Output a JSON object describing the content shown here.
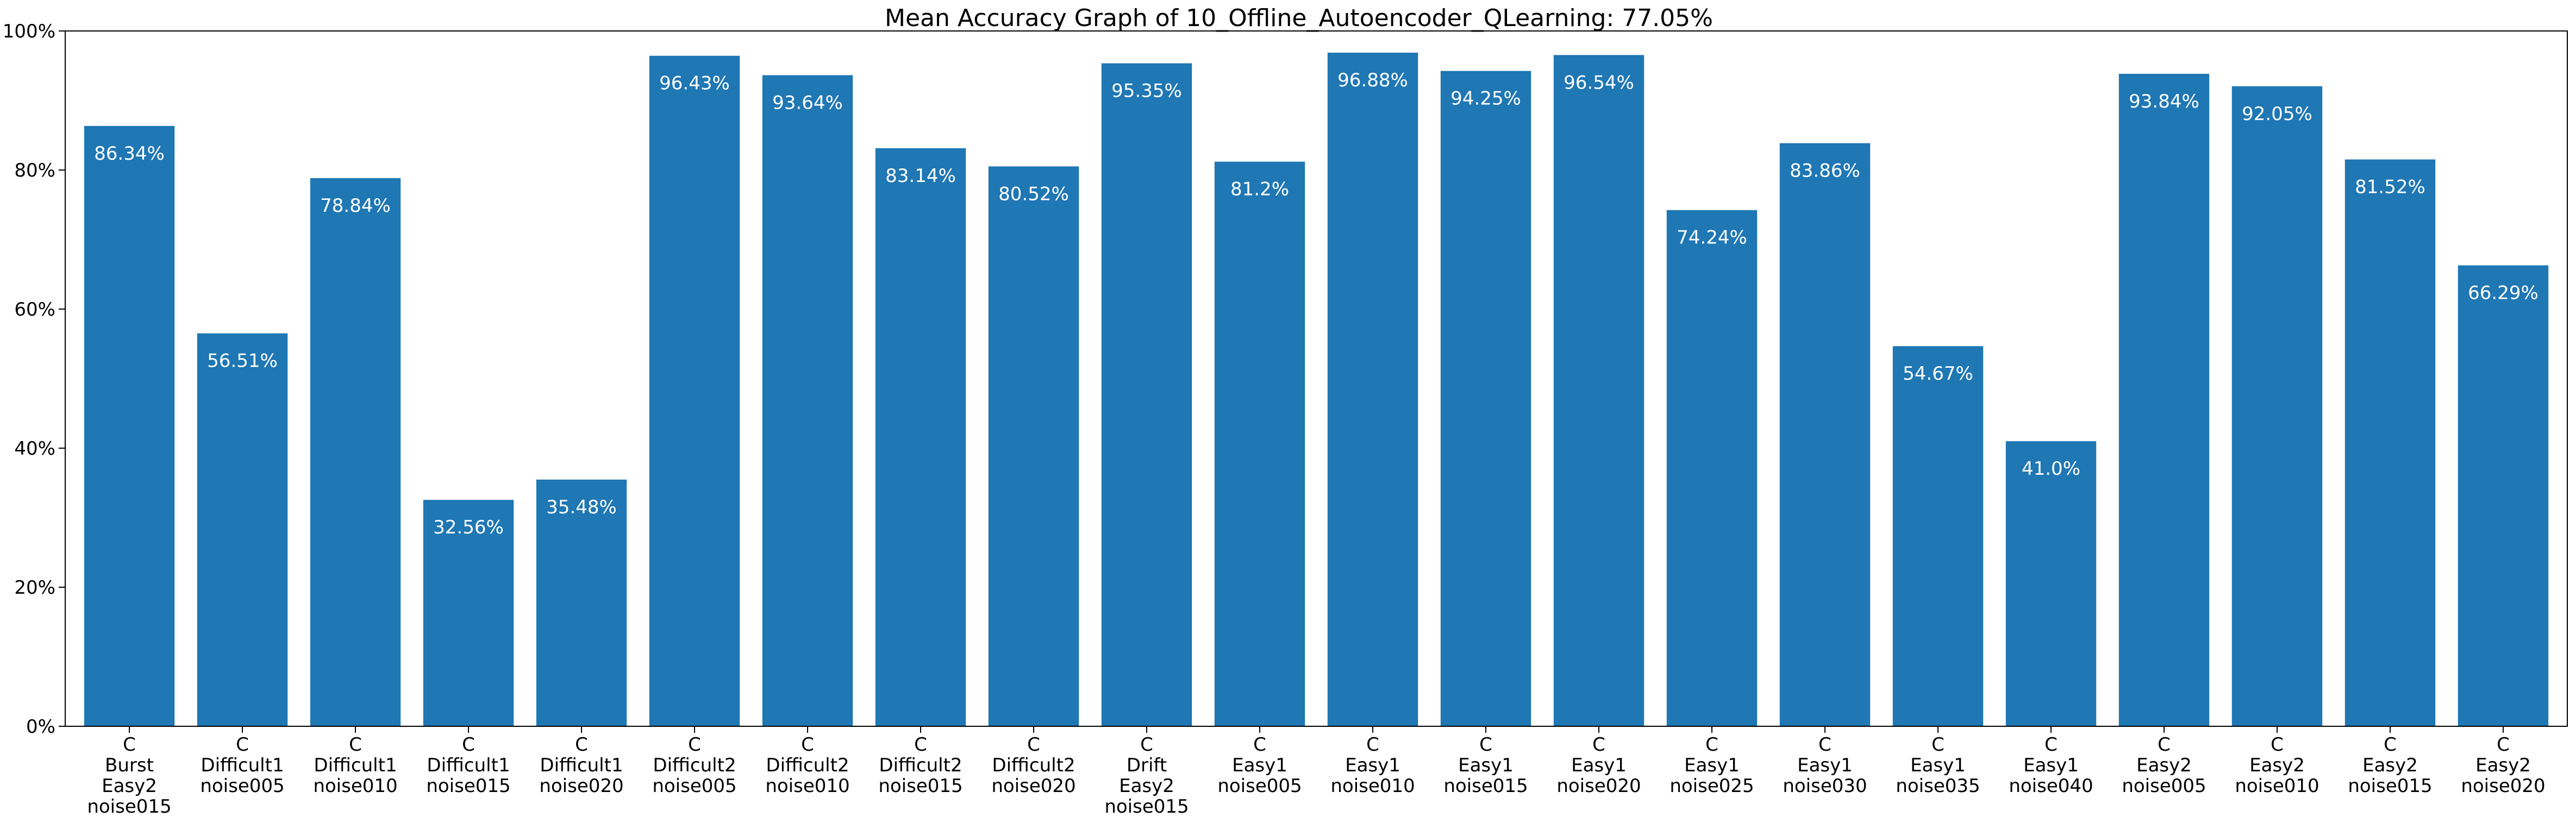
{
  "chart_data": {
    "type": "bar",
    "title": "Mean Accuracy Graph of 10_Offline_Autoencoder_QLearning: 77.05%",
    "xlabel": "",
    "ylabel": "",
    "ylim": [
      0,
      100
    ],
    "yticks": [
      0,
      20,
      40,
      60,
      80,
      100
    ],
    "ytick_labels": [
      "0%",
      "20%",
      "40%",
      "60%",
      "80%",
      "100%"
    ],
    "grid": false,
    "bar_color": "#1f77b4",
    "label_color": "#ffffff",
    "categories": [
      [
        "C",
        "Burst",
        "Easy2",
        "noise015"
      ],
      [
        "C",
        "Difficult1",
        "noise005"
      ],
      [
        "C",
        "Difficult1",
        "noise010"
      ],
      [
        "C",
        "Difficult1",
        "noise015"
      ],
      [
        "C",
        "Difficult1",
        "noise020"
      ],
      [
        "C",
        "Difficult2",
        "noise005"
      ],
      [
        "C",
        "Difficult2",
        "noise010"
      ],
      [
        "C",
        "Difficult2",
        "noise015"
      ],
      [
        "C",
        "Difficult2",
        "noise020"
      ],
      [
        "C",
        "Drift",
        "Easy2",
        "noise015"
      ],
      [
        "C",
        "Easy1",
        "noise005"
      ],
      [
        "C",
        "Easy1",
        "noise010"
      ],
      [
        "C",
        "Easy1",
        "noise015"
      ],
      [
        "C",
        "Easy1",
        "noise020"
      ],
      [
        "C",
        "Easy1",
        "noise025"
      ],
      [
        "C",
        "Easy1",
        "noise030"
      ],
      [
        "C",
        "Easy1",
        "noise035"
      ],
      [
        "C",
        "Easy1",
        "noise040"
      ],
      [
        "C",
        "Easy2",
        "noise005"
      ],
      [
        "C",
        "Easy2",
        "noise010"
      ],
      [
        "C",
        "Easy2",
        "noise015"
      ],
      [
        "C",
        "Easy2",
        "noise020"
      ]
    ],
    "values": [
      86.34,
      56.51,
      78.84,
      32.56,
      35.48,
      96.43,
      93.64,
      83.14,
      80.52,
      95.35,
      81.2,
      96.88,
      94.25,
      96.54,
      74.24,
      83.86,
      54.67,
      41.0,
      93.84,
      92.05,
      81.52,
      66.29
    ],
    "value_labels": [
      "86.34%",
      "56.51%",
      "78.84%",
      "32.56%",
      "35.48%",
      "96.43%",
      "93.64%",
      "83.14%",
      "80.52%",
      "95.35%",
      "81.2%",
      "96.88%",
      "94.25%",
      "96.54%",
      "74.24%",
      "83.86%",
      "54.67%",
      "41.0%",
      "93.84%",
      "92.05%",
      "81.52%",
      "66.29%"
    ]
  }
}
